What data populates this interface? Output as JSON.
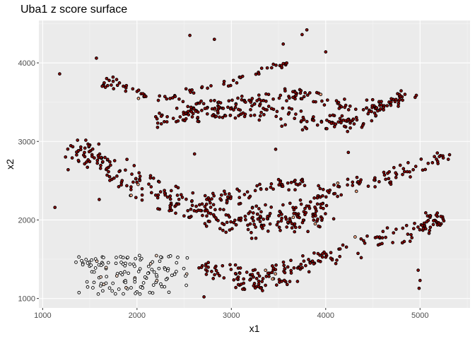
{
  "chart_data": {
    "type": "scatter",
    "title": "Uba1 z score surface",
    "xlabel": "x1",
    "ylabel": "x2",
    "xlim": [
      960,
      5530
    ],
    "ylim": [
      880,
      4540
    ],
    "x_ticks": [
      1000,
      2000,
      3000,
      4000,
      5000
    ],
    "y_ticks": [
      1000,
      2000,
      3000,
      4000
    ],
    "grid": true,
    "panel_background": "#ebebeb",
    "point_fill_high": "#8b0000",
    "point_fill_low": "#ffffff",
    "point_edge": "#000000",
    "bands": [
      {
        "name": "upper-arc",
        "x": [
          1650,
          2200,
          2800,
          3300,
          3700,
          4300,
          4800
        ],
        "y": [
          3760,
          3560,
          3450,
          3530,
          3600,
          3430,
          3500
        ],
        "width": 130
      },
      {
        "name": "upper-lower-arc",
        "x": [
          2200,
          2600,
          3000,
          3500,
          3900,
          4400,
          4900
        ],
        "y": [
          3280,
          3330,
          3390,
          3370,
          3220,
          3260,
          3640
        ],
        "width": 160
      },
      {
        "name": "top-thin-arc",
        "x": [
          2400,
          2900,
          3300,
          3600
        ],
        "y": [
          3600,
          3720,
          3860,
          4000
        ],
        "width": 70
      },
      {
        "name": "middle-arc",
        "x": [
          1300,
          1650,
          2050,
          2500,
          2900,
          3300,
          3700,
          4000
        ],
        "y": [
          2950,
          2700,
          2450,
          2200,
          2020,
          1970,
          2040,
          2200
        ],
        "width": 280
      },
      {
        "name": "middle-upper-lobe",
        "x": [
          2700,
          3100,
          3500,
          3800
        ],
        "y": [
          2270,
          2320,
          2440,
          2480
        ],
        "width": 130
      },
      {
        "name": "middle-right-arc",
        "x": [
          3950,
          4350,
          4800,
          5300
        ],
        "y": [
          2350,
          2450,
          2600,
          2850
        ],
        "width": 130
      },
      {
        "name": "lower-arc",
        "x": [
          2650,
          3100,
          3500,
          4000,
          4500,
          5000,
          5250
        ],
        "y": [
          1400,
          1310,
          1350,
          1540,
          1720,
          1900,
          2060
        ],
        "width": 170
      },
      {
        "name": "lower-belly",
        "x": [
          3000,
          3300,
          3700
        ],
        "y": [
          1210,
          1140,
          1260
        ],
        "width": 110
      }
    ],
    "low_cluster": {
      "x_range": [
        1350,
        2550
      ],
      "y_range": [
        1050,
        1550
      ],
      "fill": "#ffffff"
    },
    "outliers": [
      {
        "x": 1180,
        "y": 3860
      },
      {
        "x": 1130,
        "y": 2160
      },
      {
        "x": 1570,
        "y": 4060
      },
      {
        "x": 2560,
        "y": 4350
      },
      {
        "x": 2820,
        "y": 4300
      },
      {
        "x": 3550,
        "y": 4240
      },
      {
        "x": 3800,
        "y": 4420
      },
      {
        "x": 3750,
        "y": 4360
      },
      {
        "x": 4000,
        "y": 4140
      },
      {
        "x": 4240,
        "y": 2860
      },
      {
        "x": 5000,
        "y": 1230
      },
      {
        "x": 4990,
        "y": 1130
      },
      {
        "x": 2710,
        "y": 1020
      },
      {
        "x": 2610,
        "y": 2840
      },
      {
        "x": 3470,
        "y": 2900
      },
      {
        "x": 4980,
        "y": 1360
      },
      {
        "x": 1600,
        "y": 2260
      },
      {
        "x": 1270,
        "y": 2640
      }
    ]
  }
}
